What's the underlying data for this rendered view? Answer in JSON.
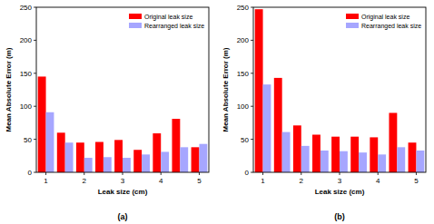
{
  "chart_data": [
    {
      "type": "bar",
      "subtitle": "(a)",
      "x_label": "Leak size (cm)",
      "y_label": "Mean Absolute Error (m)",
      "categories": [
        "1",
        null,
        "2",
        null,
        "3",
        null,
        "4",
        null,
        "5"
      ],
      "series": [
        {
          "name": "Original leak size",
          "color": "#ff0000",
          "values": [
            145,
            60,
            45,
            46,
            49,
            34,
            59,
            81,
            38
          ]
        },
        {
          "name": "Rearranged leak size",
          "color": "#a6a6ff",
          "values": [
            91,
            45,
            22,
            23,
            22,
            27,
            31,
            38,
            43
          ]
        }
      ],
      "ylim": [
        0,
        250
      ],
      "yticks": [
        0,
        50,
        100,
        150,
        200,
        250
      ],
      "legend": "top-right"
    },
    {
      "type": "bar",
      "subtitle": "(b)",
      "x_label": "Leak size (cm)",
      "y_label": "Mean Absolute Error (m)",
      "categories": [
        "1",
        null,
        "2",
        null,
        "3",
        null,
        "4",
        null,
        "5"
      ],
      "series": [
        {
          "name": "Original leak size",
          "color": "#ff0000",
          "values": [
            247,
            143,
            71,
            57,
            54,
            54,
            53,
            90,
            45
          ]
        },
        {
          "name": "Rearranged leak size",
          "color": "#a6a6ff",
          "values": [
            133,
            61,
            40,
            33,
            32,
            30,
            27,
            38,
            33
          ]
        }
      ],
      "ylim": [
        0,
        250
      ],
      "yticks": [
        0,
        50,
        100,
        150,
        200,
        250
      ],
      "legend": "top-right"
    }
  ]
}
